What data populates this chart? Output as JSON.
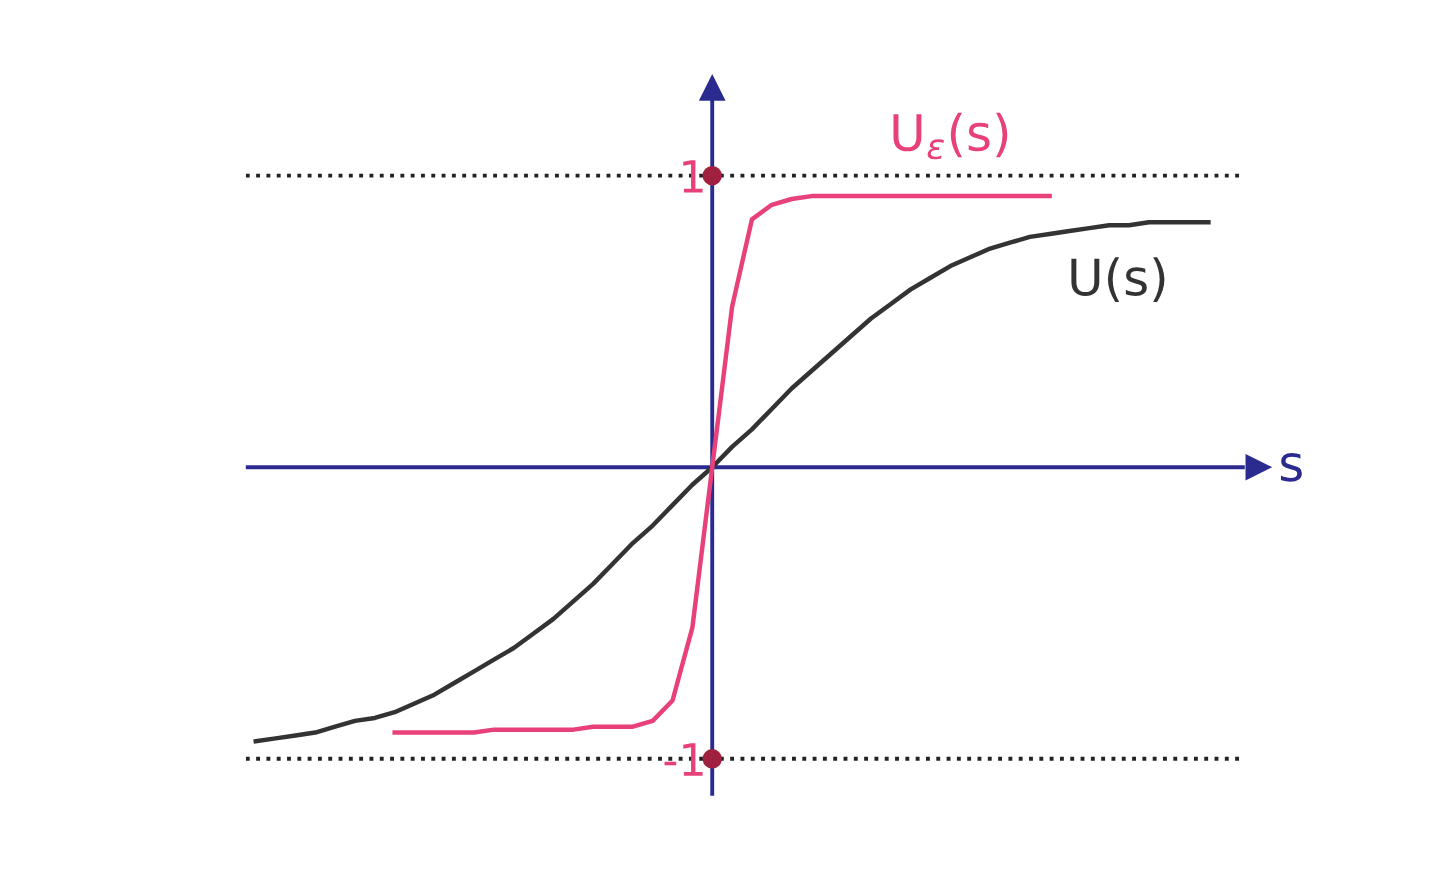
{
  "chart_data": {
    "type": "line",
    "xlabel": "s",
    "categories": [
      null,
      null,
      null,
      null,
      null,
      null,
      null,
      null,
      null,
      null,
      null,
      null,
      null,
      null,
      null,
      null,
      null,
      null,
      null,
      null,
      null,
      null,
      null,
      null,
      null,
      null,
      null,
      null,
      null,
      null,
      null,
      null,
      null,
      null,
      null,
      null,
      null,
      null,
      null,
      null,
      null,
      null,
      null,
      null,
      null,
      null,
      null,
      null,
      null
    ],
    "series": [
      {
        "name": "U(s)",
        "color": "#333333",
        "values": [
          -0.94,
          -0.93,
          -0.92,
          -0.91,
          -0.89,
          -0.87,
          -0.86,
          -0.84,
          -0.81,
          -0.78,
          -0.74,
          -0.7,
          -0.66,
          -0.62,
          -0.57,
          -0.52,
          -0.46,
          -0.4,
          -0.33,
          -0.26,
          -0.2,
          -0.13,
          -0.06,
          0,
          0.07,
          0.13,
          0.2,
          0.27,
          0.33,
          0.39,
          0.45,
          0.51,
          0.56,
          0.61,
          0.65,
          0.69,
          0.72,
          0.75,
          0.77,
          0.79,
          0.8,
          0.81,
          0.82,
          0.83,
          0.83,
          0.84,
          0.84,
          0.84,
          0.84
        ]
      },
      {
        "name": "U$_{ε}$(s)",
        "color": "#e8407a",
        "values": [
          null,
          null,
          null,
          null,
          null,
          null,
          null,
          -0.91,
          -0.91,
          -0.91,
          -0.91,
          -0.91,
          -0.9,
          -0.9,
          -0.9,
          -0.9,
          -0.9,
          -0.89,
          -0.89,
          -0.89,
          -0.87,
          -0.8,
          -0.55,
          0,
          0.55,
          0.85,
          0.9,
          0.92,
          0.93,
          0.93,
          0.93,
          0.93,
          0.93,
          0.93,
          0.93,
          0.93,
          0.93,
          0.93,
          0.93,
          0.93,
          0.93,
          null,
          null,
          null,
          null,
          null,
          null,
          null,
          null
        ]
      }
    ],
    "ylim": [
      -1.12,
      1.3
    ],
    "yticks": [
      -1,
      1
    ],
    "ref_lines": [
      {
        "axis": "y",
        "value": 0,
        "color": "#2b2b8f",
        "line_style": "solid"
      },
      {
        "axis": "y",
        "value": 1,
        "color": "#222222",
        "line_style": "dotted"
      },
      {
        "axis": "y",
        "value": -1,
        "color": "#222222",
        "line_style": "dotted"
      }
    ],
    "grid": false,
    "legend": false,
    "marker": "none",
    "line_style": "solid"
  }
}
